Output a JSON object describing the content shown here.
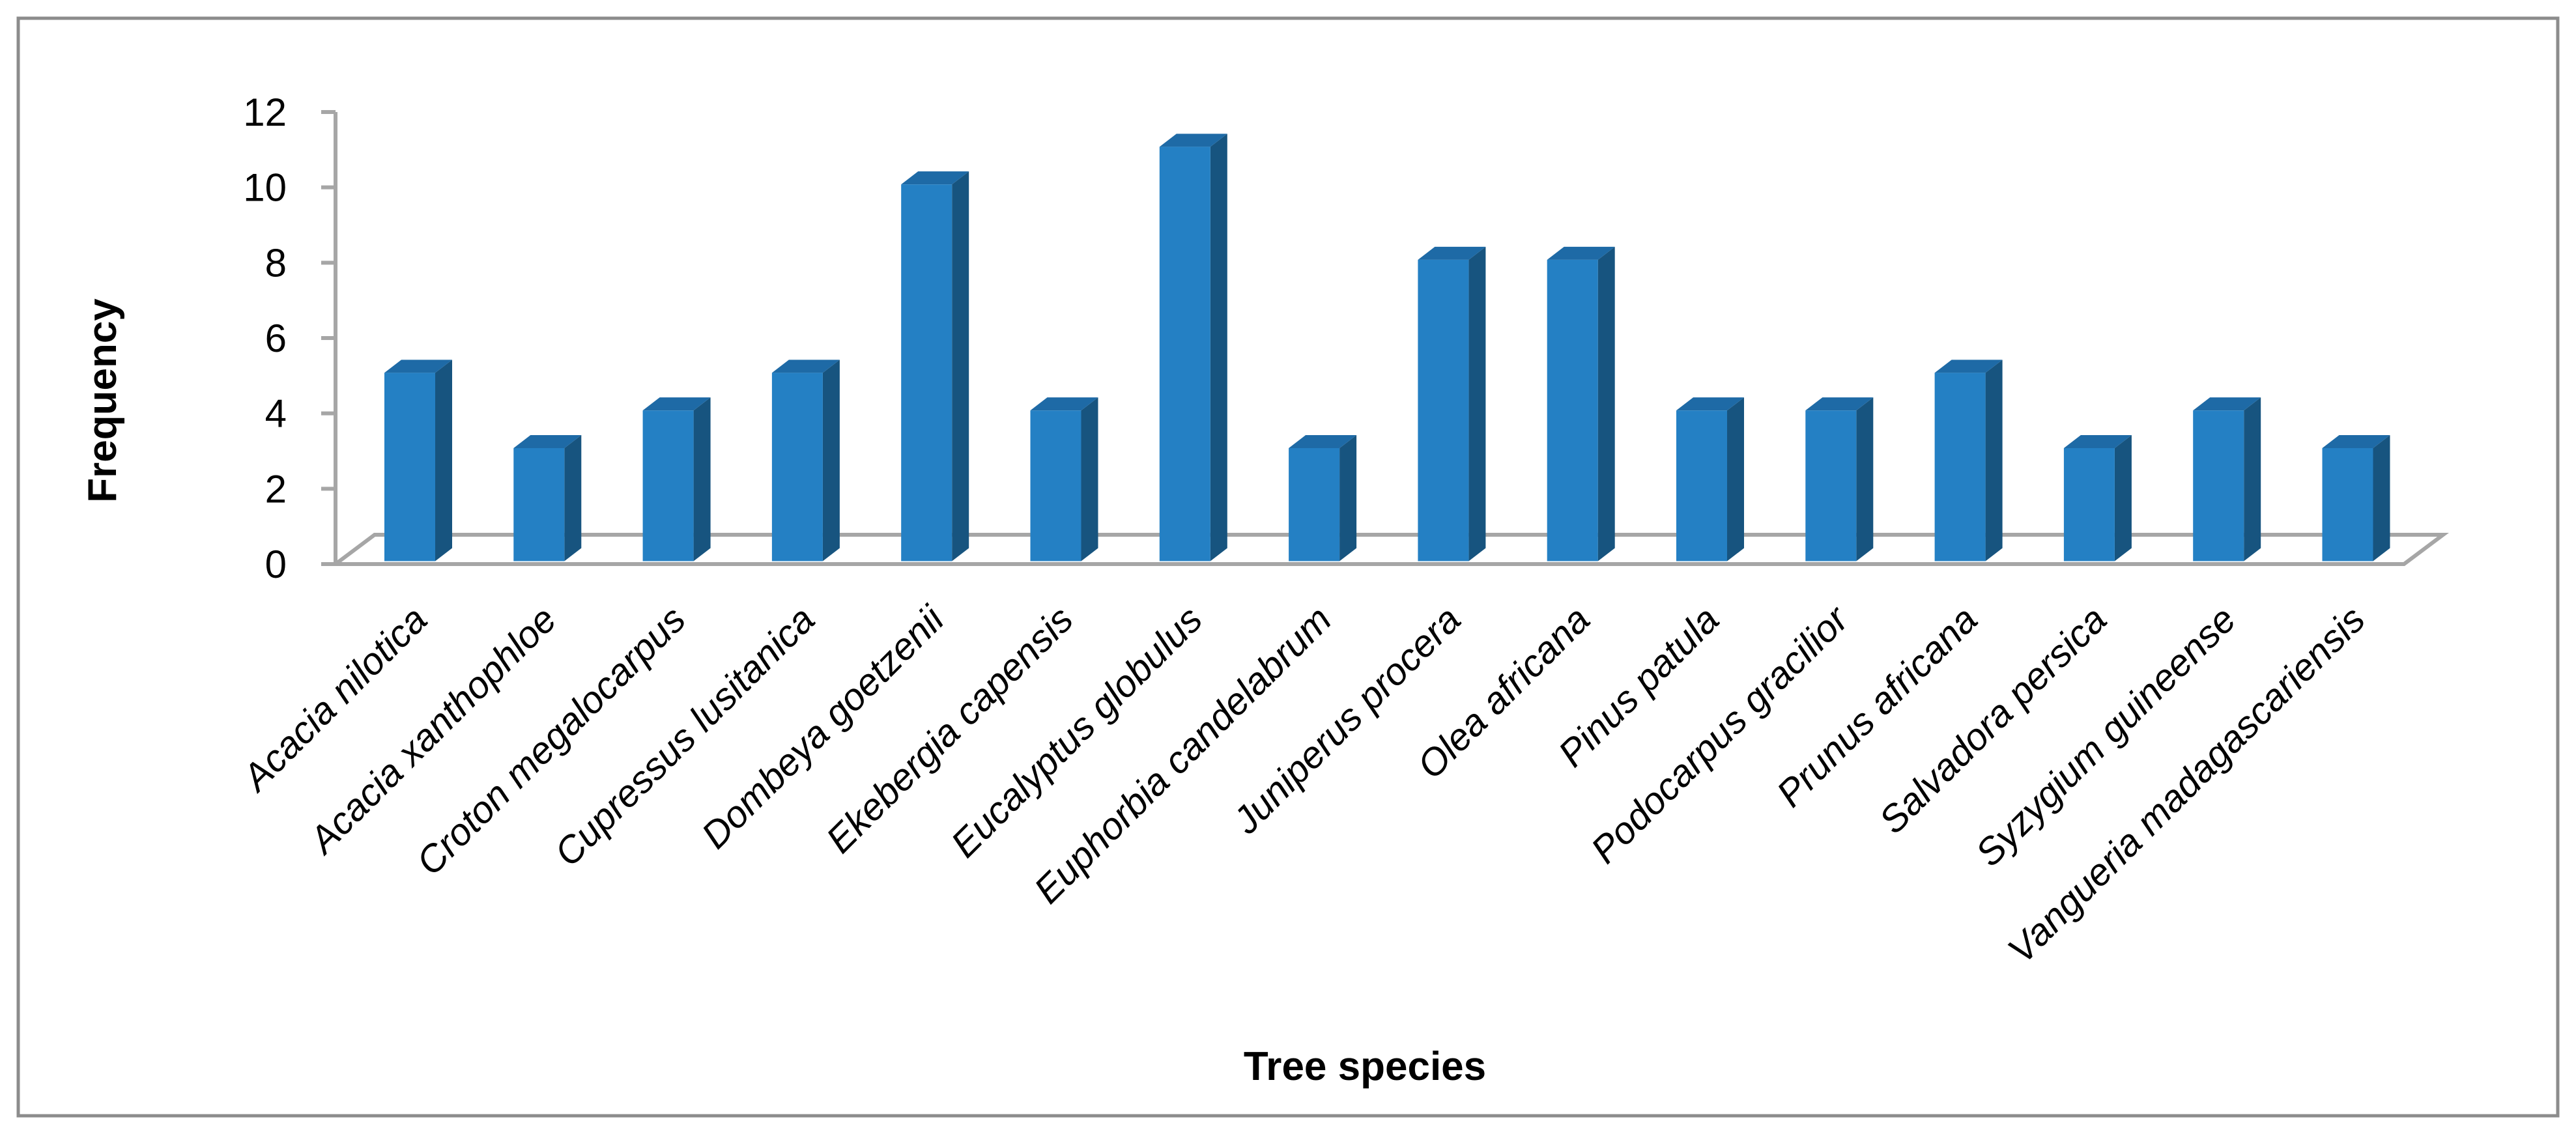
{
  "chart_data": {
    "type": "bar",
    "style": "3d-column",
    "title": "",
    "xlabel": "Tree species",
    "ylabel": "Frequency",
    "ylim": [
      0,
      12
    ],
    "yticks": [
      0,
      2,
      4,
      6,
      8,
      10,
      12
    ],
    "grid": false,
    "legend": "none",
    "categories": [
      "Acacia nilotica",
      "Acacia xanthophloe",
      "Croton megalocarpus",
      "Cupressus lusitanica",
      "Dombeya goetzenii",
      "Ekebergia capensis",
      "Eucalyptus globulus",
      "Euphorbia candelabrum",
      "Juniperus procera",
      "Olea africana",
      "Pinus patula",
      "Podocarpus gracilior",
      "Prunus africana",
      "Salvadora persica",
      "Syzygium guineense",
      "Vangueria madagascariensis"
    ],
    "values": [
      5,
      3,
      4,
      5,
      10,
      4,
      11,
      3,
      8,
      8,
      4,
      4,
      5,
      3,
      4,
      3
    ],
    "colors": {
      "bar_front": "#2480C4",
      "bar_side": "#17547F",
      "bar_top": "#1E6AA6",
      "floor_line": "#A6A6A6",
      "frame": "#8C8C8C"
    }
  }
}
